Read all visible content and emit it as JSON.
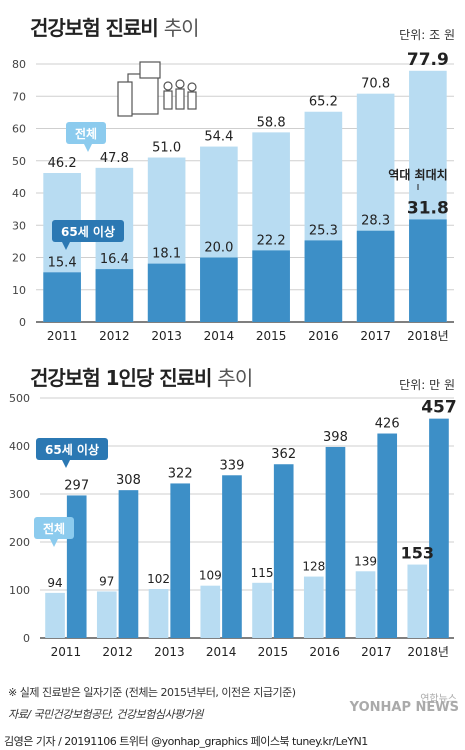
{
  "colors": {
    "total_bar": "#b8dcf2",
    "sub_bar": "#3d8fc7",
    "callout_dark": "#2b78b3",
    "callout_light": "#8ccbee",
    "grid": "#cfcfcf",
    "axis": "#333333"
  },
  "chart1": {
    "title_bold": "건강보험 진료비",
    "title_light": "추이",
    "unit": "단위: 조 원",
    "callout_total": "전체",
    "callout_sub": "65세 이상",
    "annotation": "역대 최대치",
    "icon": "building-people-icon"
  },
  "chart2": {
    "title_bold": "건강보험 1인당 진료비",
    "title_light": "추이",
    "unit": "단위: 만 원",
    "callout_total": "전체",
    "callout_sub": "65세 이상"
  },
  "footnote": "※ 실제 진료받은 일자기준 (전체는 2015년부터, 이전은 지급기준)",
  "source": "자료/ 국민건강보험공단, 건강보험심사평가원",
  "footer": "김영은 기자 / 20191106 트위터 @yonhap_graphics  페이스북 tuney.kr/LeYN1",
  "logo": "YONHAP NEWS",
  "logo_sub": "연합뉴스",
  "chart_data": [
    {
      "type": "bar",
      "title": "건강보험 진료비 추이",
      "unit": "단위: 조 원",
      "categories": [
        "2011",
        "2012",
        "2013",
        "2014",
        "2015",
        "2016",
        "2017",
        "2018년"
      ],
      "series": [
        {
          "name": "전체",
          "values": [
            46.2,
            47.8,
            51.0,
            54.4,
            58.8,
            65.2,
            70.8,
            77.9
          ]
        },
        {
          "name": "65세 이상",
          "values": [
            15.4,
            16.4,
            18.1,
            20.0,
            22.2,
            25.3,
            28.3,
            31.8
          ]
        }
      ],
      "value_labels_total": [
        "46.2",
        "47.8",
        "51.0",
        "54.4",
        "58.8",
        "65.2",
        "70.8",
        "77.9"
      ],
      "value_labels_sub": [
        "15.4",
        "16.4",
        "18.1",
        "20.0",
        "22.2",
        "25.3",
        "28.3",
        "31.8"
      ],
      "ylim": [
        0,
        80
      ],
      "yticks": [
        "0",
        "10",
        "20",
        "30",
        "40",
        "50",
        "60",
        "70",
        "80"
      ],
      "grid": true,
      "layout": "overlapped"
    },
    {
      "type": "bar",
      "title": "건강보험 1인당 진료비 추이",
      "unit": "단위: 만 원",
      "categories": [
        "2011",
        "2012",
        "2013",
        "2014",
        "2015",
        "2016",
        "2017",
        "2018년"
      ],
      "series": [
        {
          "name": "전체",
          "values": [
            94,
            97,
            102,
            109,
            115,
            128,
            139,
            153
          ]
        },
        {
          "name": "65세 이상",
          "values": [
            297,
            308,
            322,
            339,
            362,
            398,
            426,
            457
          ]
        }
      ],
      "value_labels_total": [
        "94",
        "97",
        "102",
        "109",
        "115",
        "128",
        "139",
        "153"
      ],
      "value_labels_sub": [
        "297",
        "308",
        "322",
        "339",
        "362",
        "398",
        "426",
        "457"
      ],
      "ylim": [
        0,
        500
      ],
      "yticks": [
        "0",
        "100",
        "200",
        "300",
        "400",
        "500"
      ],
      "grid": true,
      "layout": "grouped"
    }
  ]
}
